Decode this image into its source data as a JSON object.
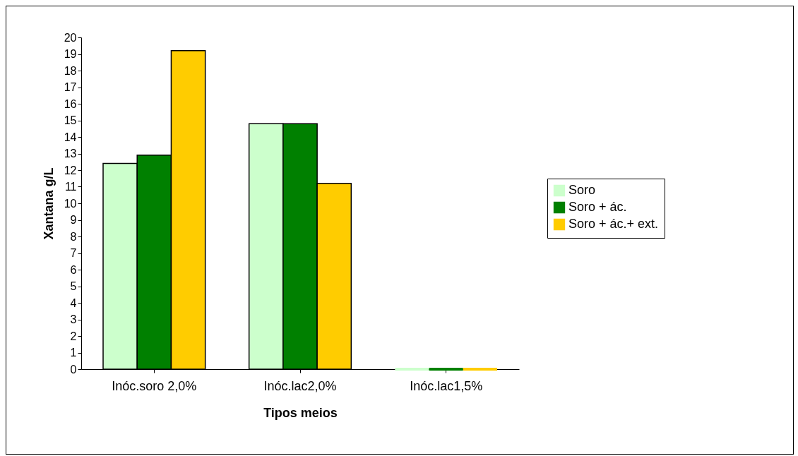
{
  "chart_data": {
    "type": "bar",
    "xlabel": "Tipos meios",
    "ylabel": "Xantana g/L",
    "categories": [
      "Inóc.soro 2,0%",
      "Inóc.lac2,0%",
      "Inóc.lac1,5%"
    ],
    "series": [
      {
        "name": "Soro",
        "color": "#ccffcc",
        "values": [
          12.4,
          14.8,
          0
        ]
      },
      {
        "name": "Soro + ác.",
        "color": "#008000",
        "values": [
          12.9,
          14.8,
          0
        ]
      },
      {
        "name": "Soro + ác.+ ext.",
        "color": "#ffcc00",
        "values": [
          19.2,
          11.2,
          0
        ]
      }
    ],
    "ylim": [
      0,
      20
    ],
    "yticks": [
      0,
      1,
      2,
      3,
      4,
      5,
      6,
      7,
      8,
      9,
      10,
      11,
      12,
      13,
      14,
      15,
      16,
      17,
      18,
      19,
      20
    ],
    "grid": false,
    "legend": "right"
  }
}
